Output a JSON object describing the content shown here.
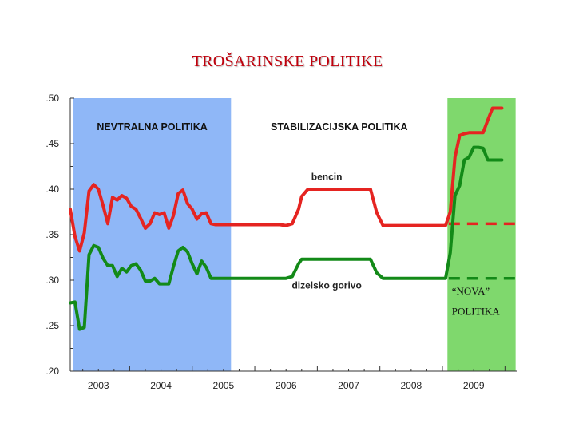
{
  "page": {
    "title": "TROŠARINSKE POLITIKE"
  },
  "chart_data": {
    "type": "line",
    "title": "TROŠARINSKE POLITIKE",
    "xlabel": "",
    "ylabel": "",
    "xlim": [
      2002.55,
      2009.7
    ],
    "ylim": [
      0.2,
      0.5
    ],
    "x_ticks": [
      2003,
      2004,
      2005,
      2006,
      2007,
      2008,
      2009
    ],
    "x_tick_labels": [
      "2003",
      "2004",
      "2005",
      "2006",
      "2007",
      "2008",
      "2009"
    ],
    "y_ticks": [
      0.2,
      0.25,
      0.3,
      0.35,
      0.4,
      0.45,
      0.5
    ],
    "y_tick_labels": [
      ".20",
      ".25",
      ".30",
      ".35",
      ".40",
      ".45",
      ".50"
    ],
    "grid": false,
    "regions": [
      {
        "label": "NEVTRALNA POLITIKA",
        "x_start": 2002.6,
        "x_end": 2005.12,
        "color": "#8fb7f7"
      },
      {
        "label": "STABILIZACIJSKA POLITIKA",
        "x_start": 2005.12,
        "x_end": 2008.58,
        "color": "#ffffff"
      },
      {
        "label": "",
        "x_start": 2008.58,
        "x_end": 2009.67,
        "color": "#7fd86d"
      }
    ],
    "colors": {
      "benzin": "#e52421",
      "diesel": "#138a18",
      "nova_policy_lines": "#e6251d / #138a18"
    },
    "series": [
      {
        "name": "bencin",
        "color": "#e52421",
        "x": [
          2002.55,
          2002.625,
          2002.7,
          2002.775,
          2002.85,
          2002.925,
          2003.0,
          2003.075,
          2003.15,
          2003.225,
          2003.3,
          2003.375,
          2003.45,
          2003.525,
          2003.6,
          2003.675,
          2003.75,
          2003.825,
          2003.9,
          2003.975,
          2004.05,
          2004.125,
          2004.2,
          2004.275,
          2004.35,
          2004.425,
          2004.5,
          2004.575,
          2004.65,
          2004.725,
          2004.8,
          2004.875,
          2004.95,
          2005.025,
          2005.1,
          2005.2,
          2005.3,
          2005.4,
          2005.5,
          2005.6,
          2005.7,
          2005.8,
          2005.9,
          2006.0,
          2006.1,
          2006.2,
          2006.25,
          2006.35,
          2006.45,
          2006.55,
          2006.65,
          2006.75,
          2006.85,
          2006.95,
          2007.05,
          2007.15,
          2007.25,
          2007.35,
          2007.45,
          2007.55,
          2007.65,
          2007.75,
          2007.85,
          2007.95,
          2008.05,
          2008.15,
          2008.25,
          2008.35,
          2008.45,
          2008.55,
          2008.625,
          2008.7,
          2008.775,
          2008.85,
          2008.925,
          2009.0,
          2009.075,
          2009.15,
          2009.225,
          2009.3,
          2009.375,
          2009.45
        ],
        "values": [
          0.378,
          0.348,
          0.332,
          0.352,
          0.398,
          0.405,
          0.4,
          0.382,
          0.362,
          0.391,
          0.388,
          0.393,
          0.39,
          0.381,
          0.378,
          0.368,
          0.357,
          0.362,
          0.374,
          0.372,
          0.374,
          0.357,
          0.371,
          0.395,
          0.399,
          0.384,
          0.378,
          0.367,
          0.373,
          0.374,
          0.362,
          0.361,
          0.361,
          0.361,
          0.361,
          0.361,
          0.361,
          0.361,
          0.361,
          0.361,
          0.361,
          0.361,
          0.361,
          0.36,
          0.362,
          0.378,
          0.392,
          0.4,
          0.4,
          0.4,
          0.4,
          0.4,
          0.4,
          0.4,
          0.4,
          0.4,
          0.4,
          0.4,
          0.374,
          0.36,
          0.36,
          0.36,
          0.36,
          0.36,
          0.36,
          0.36,
          0.36,
          0.36,
          0.36,
          0.36,
          0.375,
          0.435,
          0.459,
          0.461,
          0.462,
          0.462,
          0.462,
          0.462,
          0.476,
          0.489,
          0.489,
          0.489
        ]
      },
      {
        "name": "dizelsko gorivo",
        "color": "#138a18",
        "x": [
          2002.55,
          2002.625,
          2002.7,
          2002.775,
          2002.85,
          2002.925,
          2003.0,
          2003.075,
          2003.15,
          2003.225,
          2003.3,
          2003.375,
          2003.45,
          2003.525,
          2003.6,
          2003.675,
          2003.75,
          2003.825,
          2003.9,
          2003.975,
          2004.05,
          2004.125,
          2004.2,
          2004.275,
          2004.35,
          2004.425,
          2004.5,
          2004.575,
          2004.65,
          2004.725,
          2004.8,
          2004.875,
          2004.95,
          2005.025,
          2005.1,
          2005.2,
          2005.3,
          2005.4,
          2005.5,
          2005.6,
          2005.7,
          2005.8,
          2005.9,
          2006.0,
          2006.1,
          2006.2,
          2006.25,
          2006.35,
          2006.45,
          2006.55,
          2006.65,
          2006.75,
          2006.85,
          2006.95,
          2007.05,
          2007.15,
          2007.25,
          2007.35,
          2007.45,
          2007.55,
          2007.65,
          2007.75,
          2007.85,
          2007.95,
          2008.05,
          2008.15,
          2008.25,
          2008.35,
          2008.45,
          2008.55,
          2008.625,
          2008.7,
          2008.775,
          2008.85,
          2008.925,
          2009.0,
          2009.075,
          2009.15,
          2009.225,
          2009.3,
          2009.375,
          2009.45
        ],
        "values": [
          0.275,
          0.276,
          0.246,
          0.248,
          0.328,
          0.338,
          0.336,
          0.324,
          0.316,
          0.316,
          0.304,
          0.313,
          0.309,
          0.316,
          0.318,
          0.311,
          0.299,
          0.299,
          0.302,
          0.296,
          0.296,
          0.296,
          0.315,
          0.332,
          0.336,
          0.331,
          0.318,
          0.307,
          0.321,
          0.314,
          0.302,
          0.302,
          0.302,
          0.302,
          0.302,
          0.302,
          0.302,
          0.302,
          0.302,
          0.302,
          0.302,
          0.302,
          0.302,
          0.302,
          0.304,
          0.318,
          0.323,
          0.323,
          0.323,
          0.323,
          0.323,
          0.323,
          0.323,
          0.323,
          0.323,
          0.323,
          0.323,
          0.323,
          0.308,
          0.302,
          0.302,
          0.302,
          0.302,
          0.302,
          0.302,
          0.302,
          0.302,
          0.302,
          0.302,
          0.302,
          0.33,
          0.393,
          0.404,
          0.432,
          0.435,
          0.446,
          0.446,
          0.445,
          0.432,
          0.432,
          0.432,
          0.432
        ]
      }
    ],
    "annotations": [
      {
        "text": "bencin",
        "x": 2006.65,
        "y": 0.41
      },
      {
        "text": "dizelsko gorivo",
        "x": 2006.65,
        "y": 0.291
      },
      {
        "text": "“NOVA”",
        "x": 2008.65,
        "y": 0.284
      },
      {
        "text": "POLITIKA",
        "x": 2008.65,
        "y": 0.262
      }
    ],
    "reference_lines": [
      {
        "series": "bencin",
        "y": 0.362,
        "x_start": 2008.6,
        "x_end": 2009.67,
        "style": "dashed"
      },
      {
        "series": "dizelsko gorivo",
        "y": 0.302,
        "x_start": 2008.6,
        "x_end": 2009.67,
        "style": "dashed"
      }
    ]
  }
}
